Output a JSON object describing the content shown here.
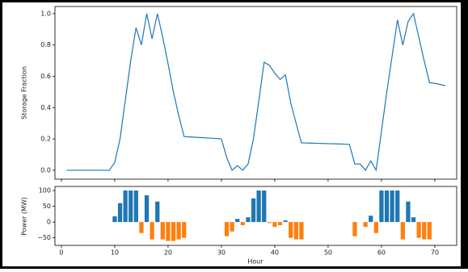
{
  "chart_data": [
    {
      "type": "line",
      "ylabel": "Storage Fraction",
      "color": "#1f77b4",
      "x": [
        1,
        2,
        3,
        4,
        5,
        6,
        7,
        8,
        9,
        10,
        11,
        12,
        13,
        14,
        15,
        16,
        17,
        18,
        19,
        20,
        21,
        22,
        23,
        24,
        25,
        26,
        27,
        28,
        29,
        30,
        31,
        32,
        33,
        34,
        35,
        36,
        37,
        38,
        39,
        40,
        41,
        42,
        43,
        44,
        45,
        46,
        47,
        48,
        49,
        50,
        51,
        52,
        53,
        54,
        55,
        56,
        57,
        58,
        59,
        60,
        61,
        62,
        63,
        64,
        65,
        66,
        67,
        68,
        69,
        70,
        71,
        72
      ],
      "values": [
        0,
        0,
        0,
        0,
        0,
        0,
        0,
        0,
        0,
        0.05,
        0.2,
        0.45,
        0.7,
        0.91,
        0.8,
        1.0,
        0.84,
        1.0,
        0.85,
        0.68,
        0.5,
        0.35,
        0.215,
        0.213,
        0.211,
        0.209,
        0.207,
        0.205,
        0.203,
        0.2,
        0.08,
        0.0,
        0.03,
        0.0,
        0.04,
        0.2,
        0.44,
        0.69,
        0.67,
        0.62,
        0.58,
        0.61,
        0.43,
        0.3,
        0.175,
        0.174,
        0.173,
        0.172,
        0.171,
        0.17,
        0.169,
        0.168,
        0.167,
        0.165,
        0.04,
        0.04,
        0.0,
        0.06,
        0.0,
        0.25,
        0.5,
        0.73,
        0.96,
        0.8,
        0.95,
        1.0,
        0.85,
        0.7,
        0.56,
        0.555,
        0.548,
        0.54
      ],
      "xlim": [
        -1.2,
        74.1
      ],
      "ylim": [
        -0.057,
        1.046
      ],
      "yticks": [
        {
          "value": 0,
          "label": "0.0"
        },
        {
          "value": 0.2,
          "label": "0.2"
        },
        {
          "value": 0.4,
          "label": "0.4"
        },
        {
          "value": 0.6,
          "label": "0.6"
        },
        {
          "value": 0.8,
          "label": "0.8"
        },
        {
          "value": 1,
          "label": "1.0"
        }
      ]
    },
    {
      "type": "bar",
      "xlabel": "Hour",
      "ylabel": "Power (MW)",
      "positive_color": "#1f77b4",
      "negative_color": "#ff7f0e",
      "x": [
        1,
        2,
        3,
        4,
        5,
        6,
        7,
        8,
        9,
        10,
        11,
        12,
        13,
        14,
        15,
        16,
        17,
        18,
        19,
        20,
        21,
        22,
        23,
        24,
        25,
        26,
        27,
        28,
        29,
        30,
        31,
        32,
        33,
        34,
        35,
        36,
        37,
        38,
        39,
        40,
        41,
        42,
        43,
        44,
        45,
        46,
        47,
        48,
        49,
        50,
        51,
        52,
        53,
        54,
        55,
        56,
        57,
        58,
        59,
        60,
        61,
        62,
        63,
        64,
        65,
        66,
        67,
        68,
        69,
        70,
        71,
        72
      ],
      "values": [
        0,
        0,
        0,
        0,
        0,
        0,
        0,
        0,
        0,
        18,
        60,
        100,
        100,
        100,
        -35,
        85,
        -55,
        65,
        -55,
        -60,
        -60,
        -55,
        -50,
        0,
        0,
        0,
        0,
        0,
        0,
        0,
        -45,
        -30,
        10,
        -10,
        15,
        75,
        100,
        100,
        -3,
        -15,
        -10,
        5,
        -50,
        -55,
        -55,
        0,
        0,
        0,
        0,
        0,
        0,
        0,
        0,
        0,
        -45,
        0,
        -15,
        20,
        -35,
        100,
        100,
        100,
        100,
        -55,
        65,
        15,
        -50,
        -55,
        -55,
        0,
        0,
        0
      ],
      "xlim": [
        -1.2,
        74.1
      ],
      "ylim": [
        -74,
        113
      ],
      "xticks": [
        0,
        10,
        20,
        30,
        40,
        50,
        60,
        70
      ],
      "yticks": [
        {
          "value": -50,
          "label": "−50"
        },
        0,
        50,
        100
      ]
    }
  ]
}
